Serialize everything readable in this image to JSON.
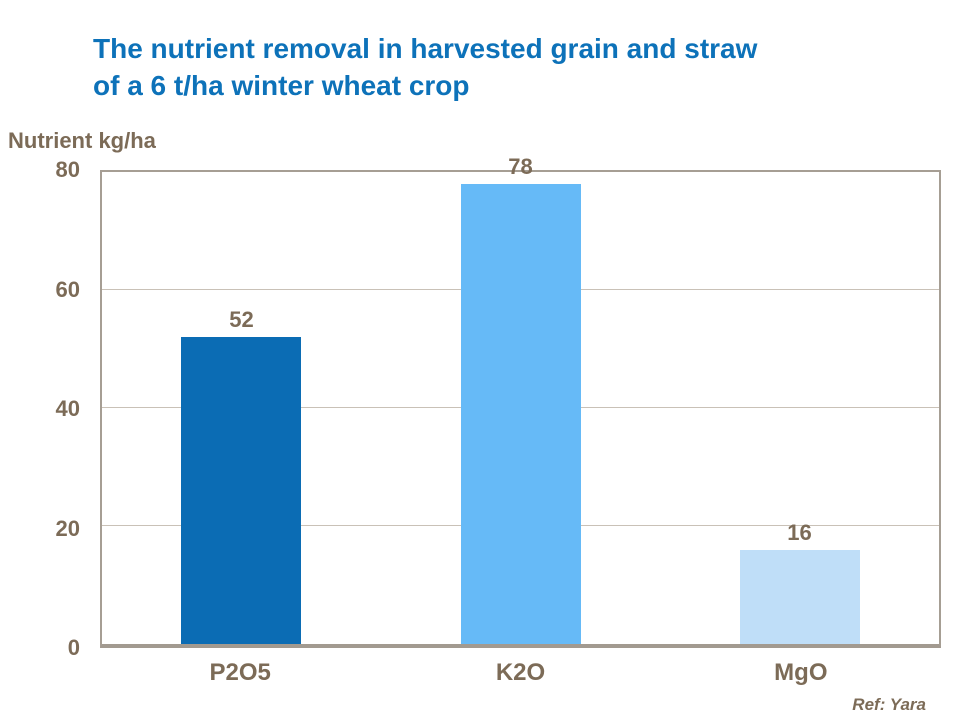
{
  "page": {
    "title_line1": "The nutrient removal in harvested grain and straw",
    "title_line2": "of a 6 t/ha winter wheat crop",
    "ref": "Ref: Yara"
  },
  "colors": {
    "title_blue": "#0d72b9",
    "text_brown": "#7c6b57",
    "gridline_gray": "#c9c1b7",
    "axis_gray": "#a69e94"
  },
  "chart_data": {
    "type": "bar",
    "title": "The nutrient removal in harvested grain and straw of a 6 t/ha winter wheat crop",
    "xlabel": "",
    "ylabel": "Nutrient kg/ha",
    "categories": [
      "P2O5",
      "K2O",
      "MgO"
    ],
    "values": [
      52,
      78,
      16
    ],
    "value_labels": [
      "52",
      "78",
      "16"
    ],
    "bar_colors": [
      "#0b6cb4",
      "#66baf7",
      "#bfdef8"
    ],
    "ylim": [
      0,
      80
    ],
    "yticks": [
      0,
      20,
      40,
      60,
      80
    ],
    "grid": "horizontal",
    "legend": "none",
    "annotation": "Ref: Yara"
  }
}
